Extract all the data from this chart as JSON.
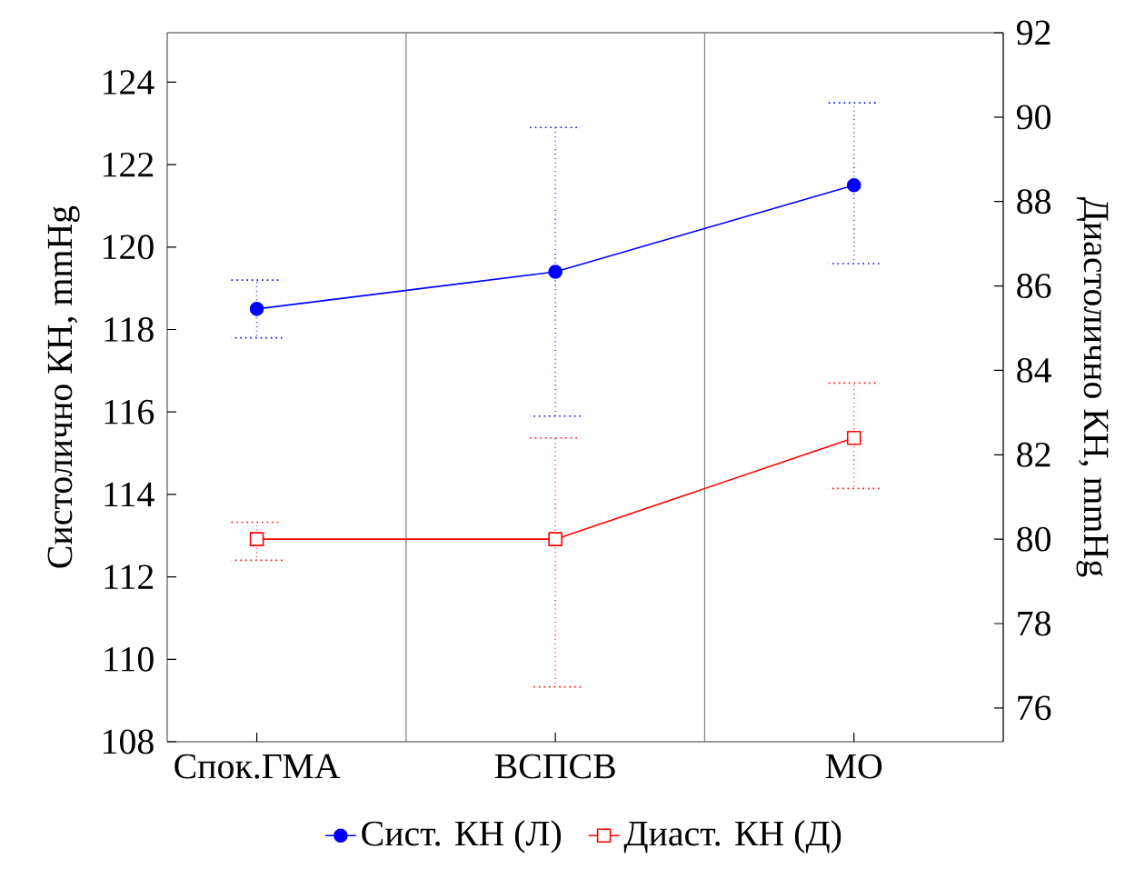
{
  "chart_data": {
    "type": "line",
    "categories": [
      "Спок.ГМА",
      "ВСПСВ",
      "МО"
    ],
    "ylabel": "Систолично КН, mmHg",
    "y2label": "Диастолично КН, mmHg",
    "ylim": [
      108,
      125.2
    ],
    "yticks": [
      108,
      110,
      112,
      114,
      116,
      118,
      120,
      122,
      124
    ],
    "y2lim": [
      75.2,
      92
    ],
    "y2ticks": [
      76,
      78,
      80,
      82,
      84,
      86,
      88,
      90,
      92
    ],
    "grid": "x",
    "legend": "bottom",
    "series": [
      {
        "name": "Сист. КН (Л)",
        "color": "#0000ff",
        "marker": "circle",
        "values": [
          118.5,
          119.4,
          121.5
        ],
        "errors": [
          [
            117.8,
            119.2
          ],
          [
            115.9,
            122.9
          ],
          [
            119.6,
            123.5
          ]
        ]
      },
      {
        "name": "Диаст. КН (Д)",
        "color": "#ff0000",
        "marker": "square",
        "axis": "y2",
        "values": [
          80.0,
          80.0,
          82.4
        ],
        "errors": [
          [
            79.5,
            80.4
          ],
          [
            76.5,
            82.4
          ],
          [
            81.2,
            83.7
          ]
        ]
      }
    ]
  }
}
